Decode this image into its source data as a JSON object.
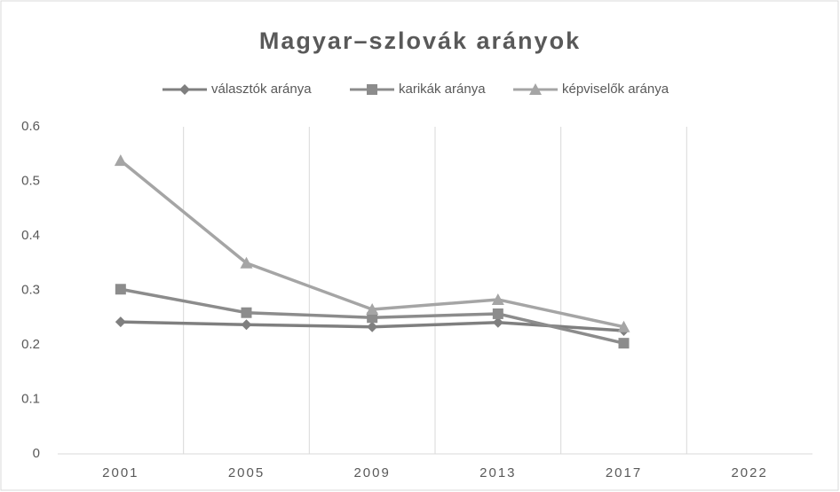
{
  "chart_data": {
    "type": "line",
    "title": "Magyar–szlovák arányok",
    "categories": [
      "2001",
      "2005",
      "2009",
      "2013",
      "2017",
      "2022"
    ],
    "series": [
      {
        "name": "választók aránya",
        "color": "#7f7f7f",
        "marker": "diamond",
        "values": [
          0.242,
          0.237,
          0.233,
          0.241,
          0.226,
          null
        ]
      },
      {
        "name": "karikák aránya",
        "color": "#8c8c8c",
        "marker": "square",
        "values": [
          0.302,
          0.259,
          0.25,
          0.257,
          0.203,
          null
        ]
      },
      {
        "name": "képviselők aránya",
        "color": "#a5a5a5",
        "marker": "triangle",
        "values": [
          0.538,
          0.35,
          0.265,
          0.283,
          0.233,
          null
        ]
      }
    ],
    "ylim": [
      0,
      0.6
    ],
    "yticks": [
      0,
      0.1,
      0.2,
      0.3,
      0.4,
      0.5,
      0.6
    ],
    "legend": "top"
  }
}
